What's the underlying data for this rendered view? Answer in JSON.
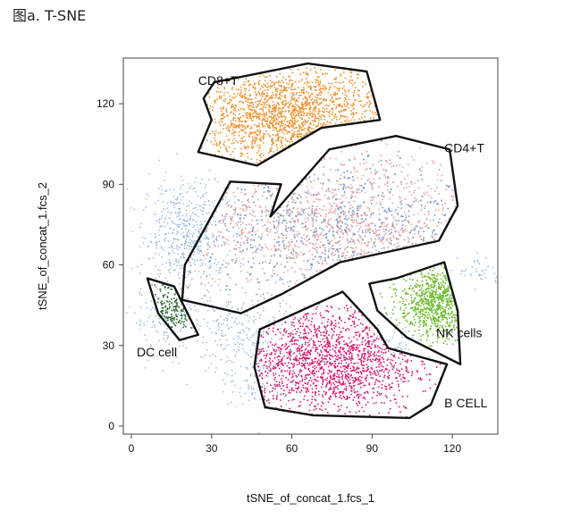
{
  "caption": "图a. T-SNE",
  "chart_data": {
    "type": "scatter",
    "title": "",
    "xlabel": "tSNE_of_concat_1.fcs_1",
    "ylabel": "tSNE_of_concat_1.fcs_2",
    "xlim": [
      -3,
      137
    ],
    "ylim": [
      -3,
      137
    ],
    "xticks": [
      0,
      30,
      60,
      90,
      120
    ],
    "yticks": [
      0,
      30,
      60,
      90,
      120
    ],
    "grid": false,
    "colors": {
      "cd8": "#f0922e",
      "cd4": "#e9a9a9",
      "cd4_overlay": "#7a9fd0",
      "nk": "#6cbb2c",
      "b": "#d81b71",
      "dc": "#2f6b2a",
      "ungated": "#8fb4dc",
      "gate": "#111111"
    },
    "populations": [
      {
        "name": "CD8+T",
        "color_key": "cd8",
        "center": [
          58,
          116
        ],
        "spread": [
          18,
          9
        ],
        "gate": [
          [
            27,
            122
          ],
          [
            31,
            128
          ],
          [
            66,
            135
          ],
          [
            88,
            132
          ],
          [
            93,
            114
          ],
          [
            71,
            111
          ],
          [
            47,
            97
          ],
          [
            25,
            102
          ],
          [
            30,
            114
          ]
        ],
        "label_at": [
          25,
          127
        ]
      },
      {
        "name": "CD4+T",
        "color_key": "cd4",
        "center": [
          75,
          75
        ],
        "spread": [
          30,
          13
        ],
        "gate": [
          [
            20,
            60
          ],
          [
            37,
            91
          ],
          [
            56,
            90
          ],
          [
            52,
            78
          ],
          [
            74,
            103
          ],
          [
            99,
            108
          ],
          [
            119,
            103
          ],
          [
            122,
            82
          ],
          [
            115,
            69
          ],
          [
            78,
            61
          ],
          [
            56,
            49
          ],
          [
            41,
            42
          ],
          [
            19,
            47
          ]
        ],
        "label_at": [
          117,
          102
        ]
      },
      {
        "name": "NK cells",
        "color_key": "nk",
        "center": [
          114,
          47
        ],
        "spread": [
          7,
          7
        ],
        "gate": [
          [
            89,
            53
          ],
          [
            99,
            55
          ],
          [
            117,
            61
          ],
          [
            122,
            43
          ],
          [
            123,
            23
          ],
          [
            103,
            33
          ],
          [
            92,
            43
          ]
        ],
        "label_at": [
          114,
          33
        ]
      },
      {
        "name": "B CELL",
        "color_key": "b",
        "center": [
          73,
          24
        ],
        "spread": [
          17,
          10
        ],
        "gate": [
          [
            48,
            36
          ],
          [
            79,
            50
          ],
          [
            92,
            36
          ],
          [
            96,
            29
          ],
          [
            118,
            23
          ],
          [
            112,
            8
          ],
          [
            104,
            3
          ],
          [
            68,
            4
          ],
          [
            50,
            7
          ],
          [
            46,
            22
          ]
        ],
        "label_at": [
          117,
          7
        ]
      },
      {
        "name": "DC cell",
        "color_key": "dc",
        "center": [
          15,
          44
        ],
        "spread": [
          4,
          6
        ],
        "gate": [
          [
            6,
            55
          ],
          [
            16,
            52
          ],
          [
            25,
            34
          ],
          [
            18,
            32
          ],
          [
            10,
            42
          ]
        ],
        "label_at": [
          2,
          26
        ]
      }
    ]
  }
}
